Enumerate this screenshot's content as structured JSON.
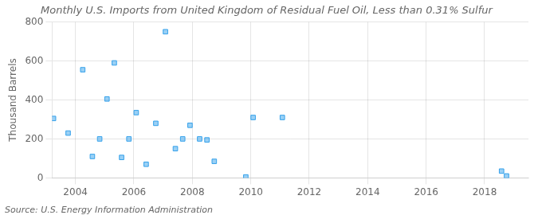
{
  "chart_data": {
    "type": "scatter",
    "title": "Monthly U.S. Imports from United Kingdom of Residual Fuel Oil, Less than 0.31% Sulfur",
    "ylabel": "Thousand Barrels",
    "annotation": "Source: U.S. Energy Information Administration",
    "marker": "square",
    "grid": true,
    "xlim": [
      2003.2,
      2019.5
    ],
    "ylim": [
      0,
      800
    ],
    "xticks": [
      2004,
      2006,
      2008,
      2010,
      2012,
      2014,
      2016,
      2018
    ],
    "yticks": [
      0,
      200,
      400,
      600,
      800
    ],
    "x": [
      2003.25,
      2003.75,
      2004.25,
      2004.58,
      2004.83,
      2005.08,
      2005.33,
      2005.58,
      2005.83,
      2006.08,
      2006.42,
      2006.75,
      2007.08,
      2007.42,
      2007.67,
      2007.92,
      2008.25,
      2008.5,
      2008.75,
      2009.83,
      2010.08,
      2011.08,
      2018.58,
      2018.75
    ],
    "values": [
      305,
      230,
      555,
      110,
      200,
      405,
      590,
      105,
      200,
      335,
      70,
      280,
      750,
      150,
      200,
      270,
      200,
      195,
      85,
      5,
      310,
      310,
      35,
      10
    ]
  }
}
